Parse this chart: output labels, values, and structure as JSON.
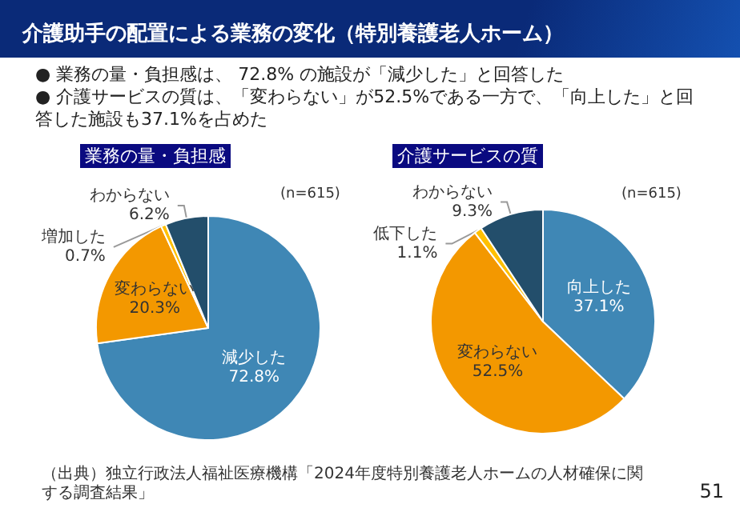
{
  "chart_data": [
    {
      "type": "pie",
      "title": "業務の量・負担感",
      "subtitle": "(n=615)",
      "annotations": [
        "介護助手の配置による業務の変化（特別養護老人ホーム）",
        "● 業務の量・負担感は、 72.8% の施設が「減少した」と回答した",
        "● 介護サービスの質は、「変わらない」が52.5%である一方で、「向上した」と回答した施設も37.1%を占めた"
      ],
      "categories": [
        "減少した",
        "変わらない",
        "増加した",
        "わからない"
      ],
      "values": [
        72.8,
        20.3,
        0.7,
        6.2
      ],
      "value_labels": [
        "72.8%",
        "20.3%",
        "0.7%",
        "6.2%"
      ],
      "colors": [
        "#3f87b5",
        "#f39800",
        "#ffc000",
        "#234e6b"
      ],
      "legend": false
    },
    {
      "type": "pie",
      "title": "介護サービスの質",
      "subtitle": "(n=615)",
      "annotations": [
        "（出典）独立行政法人福祉医療機構「2024年度特別養護老人ホームの人材確保に関する調査結果」",
        "51"
      ],
      "categories": [
        "向上した",
        "変わらない",
        "低下した",
        "わからない"
      ],
      "values": [
        37.1,
        52.5,
        1.1,
        9.3
      ],
      "value_labels": [
        "37.1%",
        "52.5%",
        "1.1%",
        "9.3%"
      ],
      "colors": [
        "#3f87b5",
        "#f39800",
        "#ffc000",
        "#234e6b"
      ],
      "legend": false
    }
  ]
}
